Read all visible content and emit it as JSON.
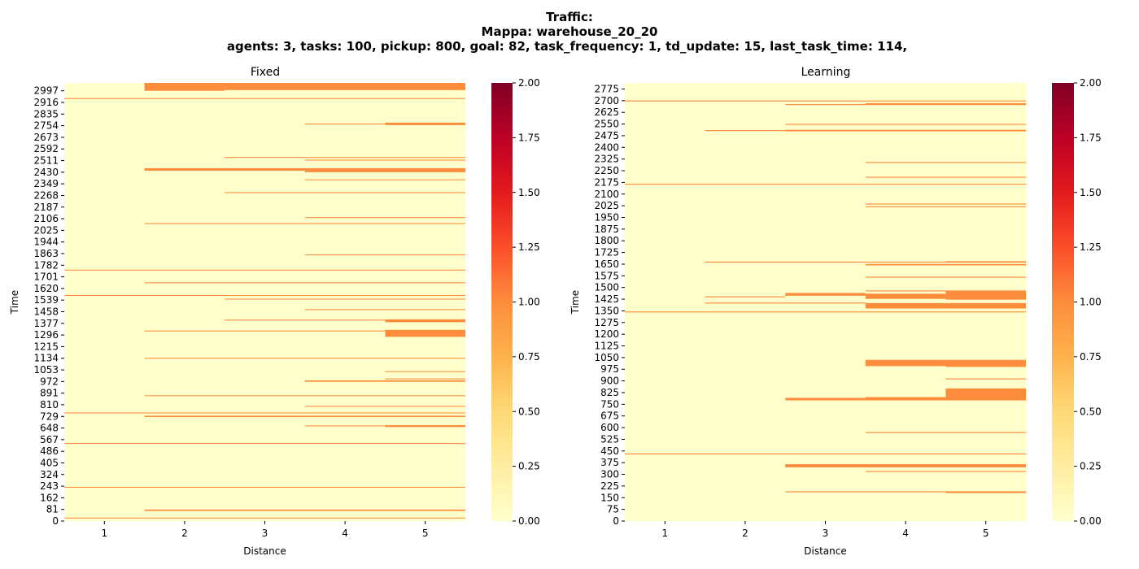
{
  "suptitle": {
    "line1": "Traffic:",
    "line2": "Mappa: warehouse_20_20",
    "line3": "agents: 3, tasks: 100, pickup: 800, goal: 82, task_frequency: 1, td_update: 15, last_task_time: 114,"
  },
  "colormap": {
    "name": "YlOrRd",
    "stops": [
      "#ffffcc",
      "#ffeda0",
      "#fed976",
      "#feb24c",
      "#fd8d3c",
      "#fc4e2a",
      "#e31a1c",
      "#bd0026",
      "#800026"
    ],
    "vmin": 0,
    "vmax": 2,
    "ticks": [
      "0.00",
      "0.25",
      "0.50",
      "0.75",
      "1.00",
      "1.25",
      "1.50",
      "1.75",
      "2.00"
    ]
  },
  "chart_data": [
    {
      "type": "heatmap",
      "title": "Fixed",
      "xlabel": "Distance",
      "ylabel": "Time",
      "x_categories": [
        "1",
        "2",
        "3",
        "4",
        "5"
      ],
      "y_range": [
        0,
        3052
      ],
      "y_ticks": [
        "0",
        "81",
        "162",
        "243",
        "324",
        "405",
        "486",
        "567",
        "648",
        "729",
        "810",
        "891",
        "972",
        "1053",
        "1134",
        "1215",
        "1296",
        "1377",
        "1458",
        "1539",
        "1620",
        "1701",
        "1782",
        "1863",
        "1944",
        "2025",
        "2106",
        "2187",
        "2268",
        "2349",
        "2430",
        "2511",
        "2592",
        "2673",
        "2754",
        "2835",
        "2916",
        "2997"
      ],
      "background_value": 0,
      "cells": [
        {
          "t0": 2997,
          "t1": 3052,
          "c0": 2,
          "c1": 2,
          "v": 1
        },
        {
          "t0": 3002,
          "t1": 3052,
          "c0": 3,
          "c1": 5,
          "v": 1
        },
        {
          "t0": 2940,
          "t1": 2946,
          "c0": 1,
          "c1": 5,
          "v": 1
        },
        {
          "t0": 2758,
          "t1": 2775,
          "c0": 5,
          "c1": 5,
          "v": 1
        },
        {
          "t0": 2763,
          "t1": 2769,
          "c0": 4,
          "c1": 4,
          "v": 1
        },
        {
          "t0": 2530,
          "t1": 2536,
          "c0": 3,
          "c1": 5,
          "v": 1
        },
        {
          "t0": 2511,
          "t1": 2517,
          "c0": 4,
          "c1": 5,
          "v": 1
        },
        {
          "t0": 2440,
          "t1": 2458,
          "c0": 2,
          "c1": 3,
          "v": 1
        },
        {
          "t0": 2430,
          "t1": 2458,
          "c0": 4,
          "c1": 5,
          "v": 1
        },
        {
          "t0": 2374,
          "t1": 2380,
          "c0": 4,
          "c1": 5,
          "v": 1
        },
        {
          "t0": 2285,
          "t1": 2291,
          "c0": 3,
          "c1": 5,
          "v": 1
        },
        {
          "t0": 2111,
          "t1": 2117,
          "c0": 4,
          "c1": 5,
          "v": 1
        },
        {
          "t0": 2069,
          "t1": 2075,
          "c0": 2,
          "c1": 5,
          "v": 1
        },
        {
          "t0": 1851,
          "t1": 1857,
          "c0": 4,
          "c1": 5,
          "v": 1
        },
        {
          "t0": 1745,
          "t1": 1751,
          "c0": 1,
          "c1": 5,
          "v": 1
        },
        {
          "t0": 1657,
          "t1": 1663,
          "c0": 2,
          "c1": 5,
          "v": 1
        },
        {
          "t0": 1568,
          "t1": 1574,
          "c0": 1,
          "c1": 5,
          "v": 1
        },
        {
          "t0": 1543,
          "t1": 1549,
          "c0": 3,
          "c1": 5,
          "v": 1
        },
        {
          "t0": 1470,
          "t1": 1476,
          "c0": 4,
          "c1": 5,
          "v": 1
        },
        {
          "t0": 1397,
          "t1": 1403,
          "c0": 3,
          "c1": 4,
          "v": 1
        },
        {
          "t0": 1385,
          "t1": 1405,
          "c0": 5,
          "c1": 5,
          "v": 1
        },
        {
          "t0": 1321,
          "t1": 1327,
          "c0": 2,
          "c1": 5,
          "v": 1
        },
        {
          "t0": 1283,
          "t1": 1332,
          "c0": 5,
          "c1": 5,
          "v": 1
        },
        {
          "t0": 1131,
          "t1": 1137,
          "c0": 2,
          "c1": 5,
          "v": 1
        },
        {
          "t0": 1038,
          "t1": 1044,
          "c0": 5,
          "c1": 5,
          "v": 1
        },
        {
          "t0": 987,
          "t1": 993,
          "c0": 5,
          "c1": 5,
          "v": 1
        },
        {
          "t0": 970,
          "t1": 980,
          "c0": 4,
          "c1": 5,
          "v": 1
        },
        {
          "t0": 870,
          "t1": 876,
          "c0": 2,
          "c1": 5,
          "v": 1
        },
        {
          "t0": 796,
          "t1": 802,
          "c0": 4,
          "c1": 5,
          "v": 1
        },
        {
          "t0": 750,
          "t1": 756,
          "c0": 1,
          "c1": 5,
          "v": 1
        },
        {
          "t0": 725,
          "t1": 734,
          "c0": 2,
          "c1": 5,
          "v": 1
        },
        {
          "t0": 660,
          "t1": 666,
          "c0": 4,
          "c1": 4,
          "v": 1
        },
        {
          "t0": 655,
          "t1": 668,
          "c0": 5,
          "c1": 5,
          "v": 1
        },
        {
          "t0": 537,
          "t1": 543,
          "c0": 1,
          "c1": 5,
          "v": 1
        },
        {
          "t0": 232,
          "t1": 238,
          "c0": 1,
          "c1": 5,
          "v": 1
        },
        {
          "t0": 70,
          "t1": 80,
          "c0": 2,
          "c1": 5,
          "v": 1
        },
        {
          "t0": 18,
          "t1": 24,
          "c0": 1,
          "c1": 5,
          "v": 1
        }
      ]
    },
    {
      "type": "heatmap",
      "title": "Learning",
      "xlabel": "Distance",
      "ylabel": "Time",
      "x_categories": [
        "1",
        "2",
        "3",
        "4",
        "5"
      ],
      "y_range": [
        0,
        2814
      ],
      "y_ticks": [
        "0",
        "75",
        "150",
        "225",
        "300",
        "375",
        "450",
        "525",
        "600",
        "675",
        "750",
        "825",
        "900",
        "975",
        "1050",
        "1125",
        "1200",
        "1275",
        "1350",
        "1425",
        "1500",
        "1575",
        "1650",
        "1725",
        "1800",
        "1875",
        "1950",
        "2025",
        "2100",
        "2175",
        "2250",
        "2325",
        "2400",
        "2475",
        "2550",
        "2625",
        "2700",
        "2775"
      ],
      "background_value": 0,
      "cells": [
        {
          "t0": 2695,
          "t1": 2701,
          "c0": 1,
          "c1": 5,
          "v": 1
        },
        {
          "t0": 2672,
          "t1": 2678,
          "c0": 3,
          "c1": 3,
          "v": 1
        },
        {
          "t0": 2672,
          "t1": 2684,
          "c0": 4,
          "c1": 5,
          "v": 1
        },
        {
          "t0": 2545,
          "t1": 2551,
          "c0": 3,
          "c1": 5,
          "v": 1
        },
        {
          "t0": 2505,
          "t1": 2511,
          "c0": 2,
          "c1": 2,
          "v": 1
        },
        {
          "t0": 2503,
          "t1": 2513,
          "c0": 3,
          "c1": 5,
          "v": 1
        },
        {
          "t0": 2300,
          "t1": 2306,
          "c0": 4,
          "c1": 5,
          "v": 1
        },
        {
          "t0": 2205,
          "t1": 2211,
          "c0": 4,
          "c1": 5,
          "v": 1
        },
        {
          "t0": 2160,
          "t1": 2166,
          "c0": 1,
          "c1": 5,
          "v": 1
        },
        {
          "t0": 2033,
          "t1": 2039,
          "c0": 4,
          "c1": 5,
          "v": 1
        },
        {
          "t0": 2015,
          "t1": 2021,
          "c0": 4,
          "c1": 5,
          "v": 1
        },
        {
          "t0": 1660,
          "t1": 1666,
          "c0": 2,
          "c1": 4,
          "v": 1
        },
        {
          "t0": 1660,
          "t1": 1669,
          "c0": 5,
          "c1": 5,
          "v": 1
        },
        {
          "t0": 1642,
          "t1": 1651,
          "c0": 4,
          "c1": 5,
          "v": 1
        },
        {
          "t0": 1563,
          "t1": 1569,
          "c0": 4,
          "c1": 5,
          "v": 1
        },
        {
          "t0": 1475,
          "t1": 1481,
          "c0": 4,
          "c1": 5,
          "v": 1
        },
        {
          "t0": 1437,
          "t1": 1443,
          "c0": 2,
          "c1": 2,
          "v": 1
        },
        {
          "t0": 1447,
          "t1": 1465,
          "c0": 3,
          "c1": 3,
          "v": 1
        },
        {
          "t0": 1427,
          "t1": 1460,
          "c0": 4,
          "c1": 4,
          "v": 1
        },
        {
          "t0": 1422,
          "t1": 1475,
          "c0": 5,
          "c1": 5,
          "v": 1
        },
        {
          "t0": 1397,
          "t1": 1403,
          "c0": 2,
          "c1": 3,
          "v": 1
        },
        {
          "t0": 1365,
          "t1": 1400,
          "c0": 4,
          "c1": 5,
          "v": 1
        },
        {
          "t0": 1340,
          "t1": 1346,
          "c0": 1,
          "c1": 5,
          "v": 1
        },
        {
          "t0": 995,
          "t1": 1035,
          "c0": 4,
          "c1": 4,
          "v": 1
        },
        {
          "t0": 990,
          "t1": 1035,
          "c0": 5,
          "c1": 5,
          "v": 1
        },
        {
          "t0": 910,
          "t1": 916,
          "c0": 5,
          "c1": 5,
          "v": 1
        },
        {
          "t0": 775,
          "t1": 791,
          "c0": 3,
          "c1": 3,
          "v": 1
        },
        {
          "t0": 775,
          "t1": 796,
          "c0": 4,
          "c1": 4,
          "v": 1
        },
        {
          "t0": 775,
          "t1": 852,
          "c0": 5,
          "c1": 5,
          "v": 1
        },
        {
          "t0": 565,
          "t1": 571,
          "c0": 4,
          "c1": 5,
          "v": 1
        },
        {
          "t0": 428,
          "t1": 434,
          "c0": 1,
          "c1": 5,
          "v": 1
        },
        {
          "t0": 345,
          "t1": 365,
          "c0": 3,
          "c1": 5,
          "v": 1
        },
        {
          "t0": 315,
          "t1": 321,
          "c0": 4,
          "c1": 5,
          "v": 1
        },
        {
          "t0": 185,
          "t1": 191,
          "c0": 3,
          "c1": 5,
          "v": 1
        },
        {
          "t0": 180,
          "t1": 188,
          "c0": 5,
          "c1": 5,
          "v": 1
        }
      ]
    }
  ]
}
